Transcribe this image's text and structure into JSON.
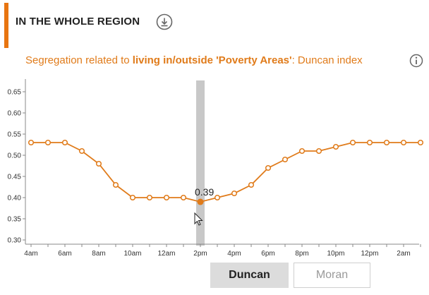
{
  "header": {
    "title": "IN THE WHOLE REGION",
    "download_icon": "download-circle-icon"
  },
  "subtitle": {
    "prefix": "Segregation related to ",
    "emphasis": "living in/outside 'Poverty Areas'",
    "suffix": ": Duncan index",
    "info_icon": "info-circle-icon"
  },
  "colors": {
    "accent": "#e87511",
    "line": "#e07b1a",
    "highlight_band": "#c8c8c8"
  },
  "chart_data": {
    "type": "line",
    "title": "",
    "xlabel": "",
    "ylabel": "",
    "ylim": [
      0.29,
      0.67
    ],
    "y_ticks": [
      "0.30",
      "0.35",
      "0.40",
      "0.45",
      "0.50",
      "0.55",
      "0.60",
      "0.65"
    ],
    "x_tick_labels": [
      "4am",
      "6am",
      "8am",
      "10am",
      "12am",
      "2pm",
      "4pm",
      "6pm",
      "8pm",
      "10pm",
      "12pm",
      "2am"
    ],
    "x": [
      "4am",
      "5am",
      "6am",
      "7am",
      "8am",
      "9am",
      "10am",
      "11am",
      "12am",
      "1pm",
      "2pm",
      "3pm",
      "4pm",
      "5pm",
      "6pm",
      "7pm",
      "8pm",
      "9pm",
      "10pm",
      "11pm",
      "12pm",
      "1am",
      "2am",
      "3am"
    ],
    "series": [
      {
        "values": [
          0.53,
          0.53,
          0.53,
          0.51,
          0.48,
          0.43,
          0.4,
          0.4,
          0.4,
          0.4,
          0.39,
          0.4,
          0.41,
          0.43,
          0.47,
          0.49,
          0.51,
          0.51,
          0.52,
          0.53,
          0.53,
          0.53,
          0.53,
          0.53
        ]
      }
    ],
    "highlight": {
      "index": 10,
      "label": "0.39"
    },
    "grid": false
  },
  "toggle": {
    "active": "Duncan",
    "inactive": "Moran"
  }
}
